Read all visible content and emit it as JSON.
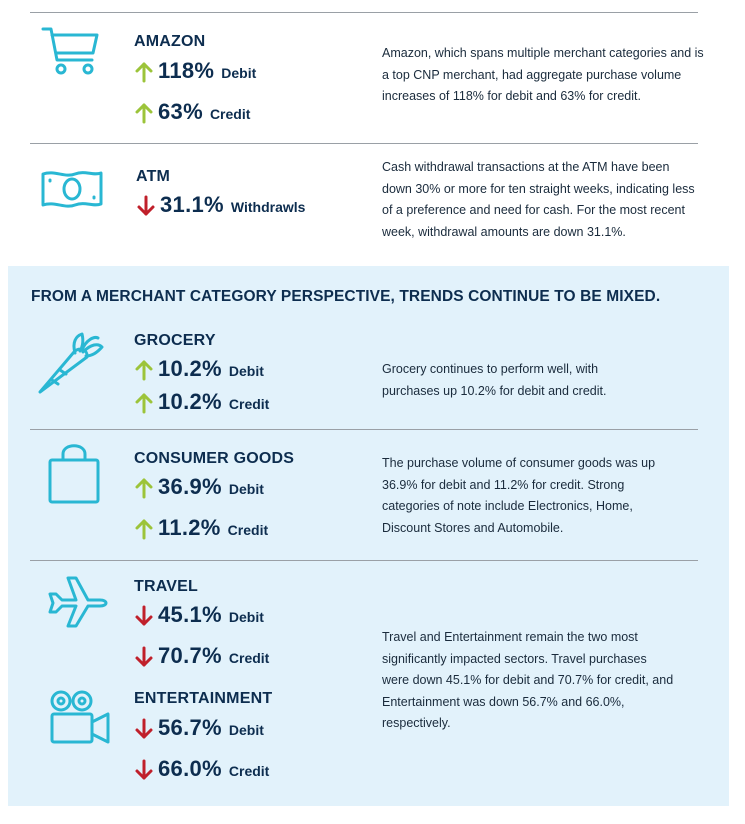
{
  "colors": {
    "navy": "#0d2d4f",
    "up": "#9cc43a",
    "down": "#c0202b",
    "icon": "#29b7d3",
    "panel": "#e2f2fb"
  },
  "amazon": {
    "icon": "shopping-cart-icon",
    "title": "AMAZON",
    "stats": [
      {
        "direction": "up",
        "value": "118%",
        "kind": "Debit"
      },
      {
        "direction": "up",
        "value": "63%",
        "kind": "Credit"
      }
    ],
    "description": "Amazon, which spans multiple merchant categories and is a top CNP merchant, had aggregate purchase volume increases of 118% for debit and 63% for credit."
  },
  "atm": {
    "icon": "cash-bill-icon",
    "title": "ATM",
    "stats": [
      {
        "direction": "down",
        "value": "31.1%",
        "kind": "Withdrawls"
      }
    ],
    "description": "Cash withdrawal transactions at the ATM have been down 30% or more for ten straight weeks, indicating less of a preference and need for cash. For the most recent week, withdrawal amounts are down 31.1%."
  },
  "merchant_section": {
    "heading": "FROM A MERCHANT CATEGORY PERSPECTIVE, TRENDS CONTINUE TO BE MIXED."
  },
  "grocery": {
    "icon": "carrot-icon",
    "title": "GROCERY",
    "stats": [
      {
        "direction": "up",
        "value": "10.2%",
        "kind": "Debit"
      },
      {
        "direction": "up",
        "value": "10.2%",
        "kind": "Credit"
      }
    ],
    "description": "Grocery continues to perform well, with purchases up 10.2% for debit and credit."
  },
  "consumer_goods": {
    "icon": "shopping-bag-icon",
    "title": "CONSUMER GOODS",
    "stats": [
      {
        "direction": "up",
        "value": "36.9%",
        "kind": "Debit"
      },
      {
        "direction": "up",
        "value": "11.2%",
        "kind": "Credit"
      }
    ],
    "description": "The purchase volume of consumer goods was up 36.9% for debit and 11.2% for credit.  Strong categories of note include Electronics, Home, Discount Stores and Automobile."
  },
  "travel": {
    "icon": "airplane-icon",
    "title": "TRAVEL",
    "stats": [
      {
        "direction": "down",
        "value": "45.1%",
        "kind": "Debit"
      },
      {
        "direction": "down",
        "value": "70.7%",
        "kind": "Credit"
      }
    ]
  },
  "entertainment": {
    "icon": "video-camera-icon",
    "title": "ENTERTAINMENT",
    "stats": [
      {
        "direction": "down",
        "value": "56.7%",
        "kind": "Debit"
      },
      {
        "direction": "down",
        "value": "66.0%",
        "kind": "Credit"
      }
    ]
  },
  "travel_entertainment_description": "Travel and Entertainment remain the two most significantly impacted sectors. Travel purchases were down 45.1% for debit and 70.7% for credit, and Entertainment was down 56.7% and 66.0%, respectively."
}
